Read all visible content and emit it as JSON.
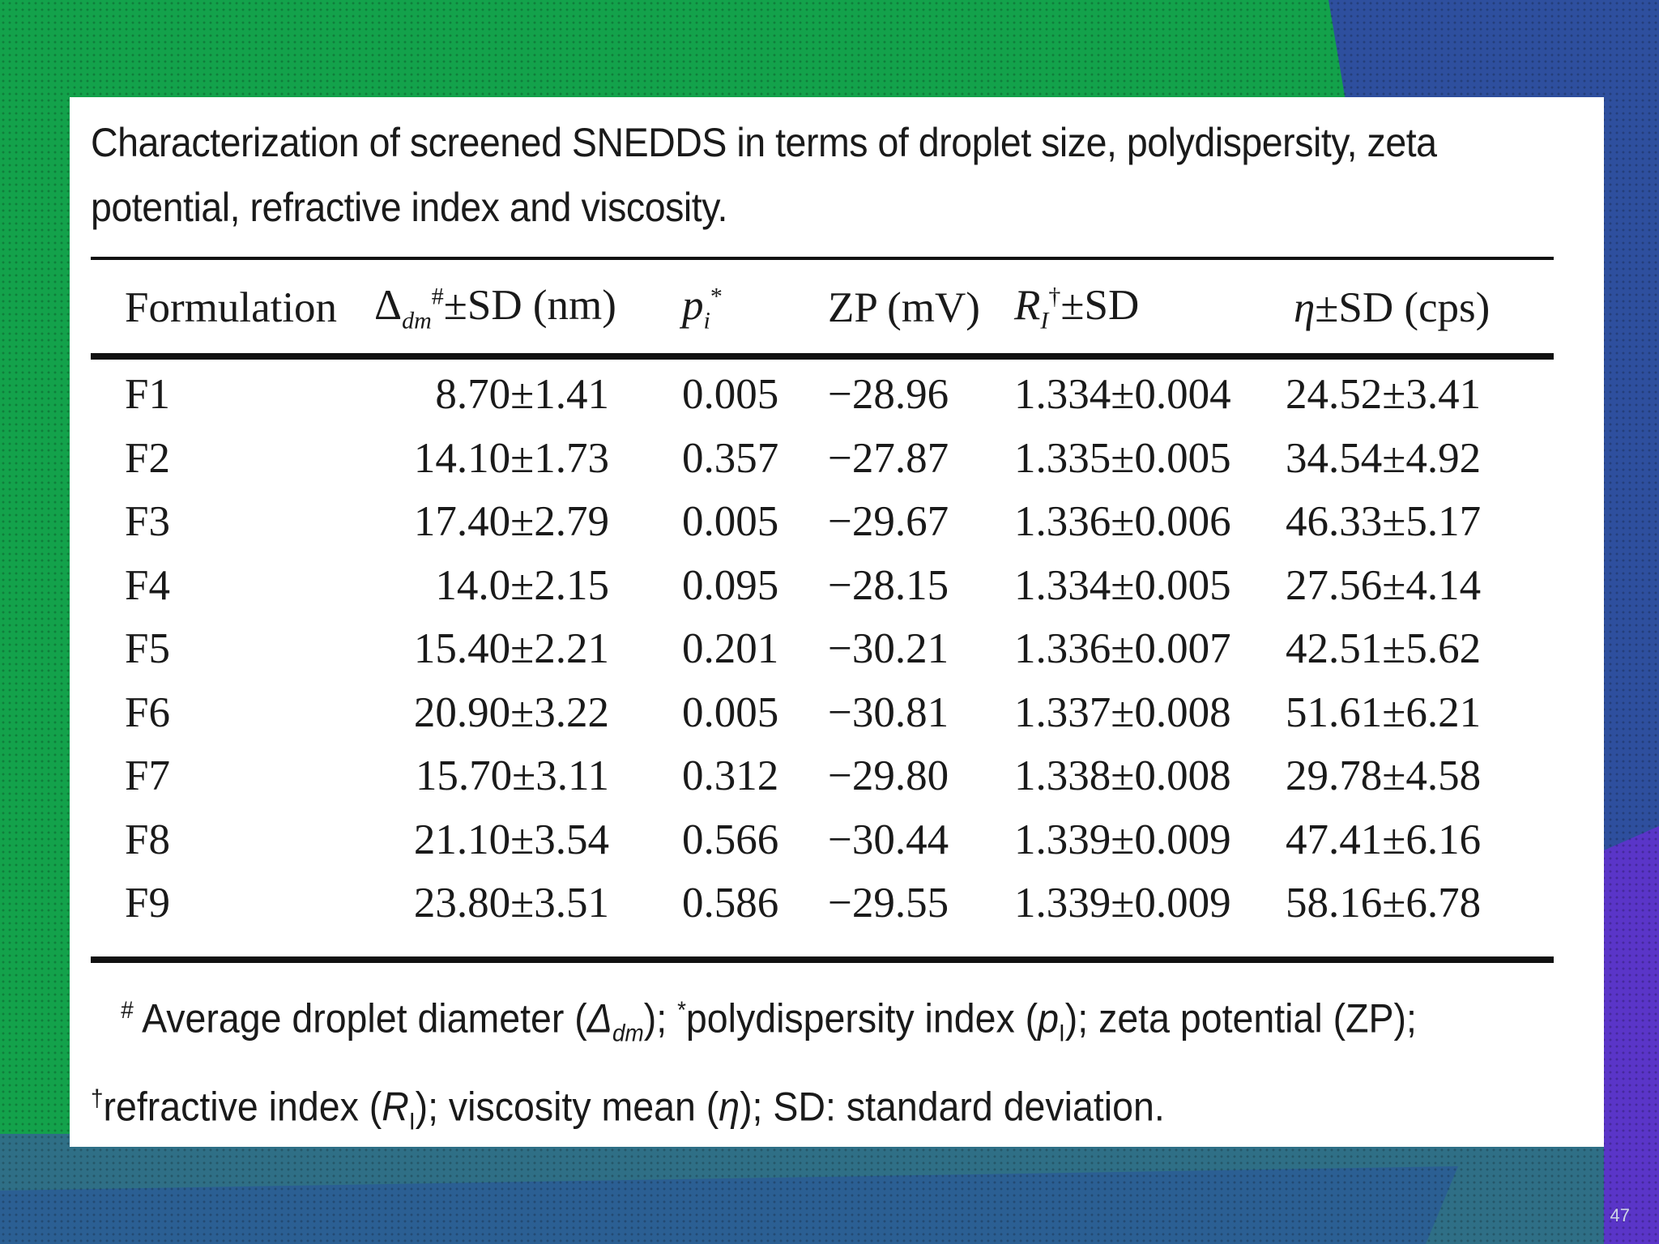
{
  "slide": {
    "number": "47"
  },
  "caption": "Characterization of screened SNEDDS in terms of droplet size, polydispersity, zeta potential, refractive index and viscosity.",
  "table": {
    "headers": {
      "formulation": "Formulation",
      "droplet": {
        "symbol": "Δ",
        "sub": "dm",
        "sup": "#",
        "suffix": "±SD (nm)"
      },
      "pdi": {
        "symbol": "p",
        "sub": "i",
        "sup": "*"
      },
      "zp": "ZP (mV)",
      "ri": {
        "symbol": "R",
        "sub": "I",
        "sup": "†",
        "suffix": "±SD"
      },
      "visc": {
        "symbol": "η",
        "suffix": "±SD (cps)"
      }
    },
    "rows": [
      {
        "f": "F1",
        "d": "8.70±1.41",
        "p": "0.005",
        "zp": "−28.96",
        "ri": "1.334±0.004",
        "v": "24.52±3.41"
      },
      {
        "f": "F2",
        "d": "14.10±1.73",
        "p": "0.357",
        "zp": "−27.87",
        "ri": "1.335±0.005",
        "v": "34.54±4.92"
      },
      {
        "f": "F3",
        "d": "17.40±2.79",
        "p": "0.005",
        "zp": "−29.67",
        "ri": "1.336±0.006",
        "v": "46.33±5.17"
      },
      {
        "f": "F4",
        "d": "14.0±2.15",
        "p": "0.095",
        "zp": "−28.15",
        "ri": "1.334±0.005",
        "v": "27.56±4.14"
      },
      {
        "f": "F5",
        "d": "15.40±2.21",
        "p": "0.201",
        "zp": "−30.21",
        "ri": "1.336±0.007",
        "v": "42.51±5.62"
      },
      {
        "f": "F6",
        "d": "20.90±3.22",
        "p": "0.005",
        "zp": "−30.81",
        "ri": "1.337±0.008",
        "v": "51.61±6.21"
      },
      {
        "f": "F7",
        "d": "15.70±3.11",
        "p": "0.312",
        "zp": "−29.80",
        "ri": "1.338±0.008",
        "v": "29.78±4.58"
      },
      {
        "f": "F8",
        "d": "21.10±3.54",
        "p": "0.566",
        "zp": "−30.44",
        "ri": "1.339±0.009",
        "v": "47.41±6.16"
      },
      {
        "f": "F9",
        "d": "23.80±3.51",
        "p": "0.586",
        "zp": "−29.55",
        "ri": "1.339±0.009",
        "v": "58.16±6.78"
      }
    ]
  },
  "footnote": {
    "mark1": "#",
    "part1": " Average droplet diameter (",
    "sym1": "Δ",
    "sym1_sub": "dm",
    "part2": "); ",
    "mark2": "*",
    "part3": "polydispersity index (",
    "sym2": "p",
    "sym2_sub": "I",
    "part4": "); zeta potential (ZP);",
    "mark3": "†",
    "part5": "refractive index (",
    "sym3": "R",
    "sym3_sub": "I",
    "part6": "); viscosity mean (",
    "sym4": "η",
    "part7": "); SD: standard deviation."
  },
  "colors": {
    "green": "#13a24b",
    "teal": "#2f6f86",
    "blue": "#2e4f9e",
    "purple": "#5a35c8"
  }
}
